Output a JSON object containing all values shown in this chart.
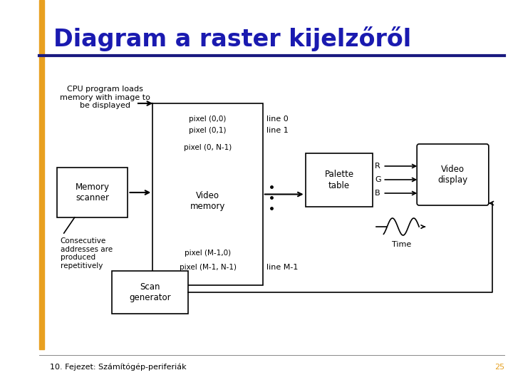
{
  "title": "Diagram a raster kijelzőről",
  "title_color": "#1a1ab0",
  "bg_color": "#ffffff",
  "footer_text": "10. Fejezet: Számítógép-periferiák",
  "footer_number": "25",
  "footer_number_color": "#e6a020",
  "orange_bar_color": "#e8a020",
  "dark_blue_line_color": "#1a1a80"
}
